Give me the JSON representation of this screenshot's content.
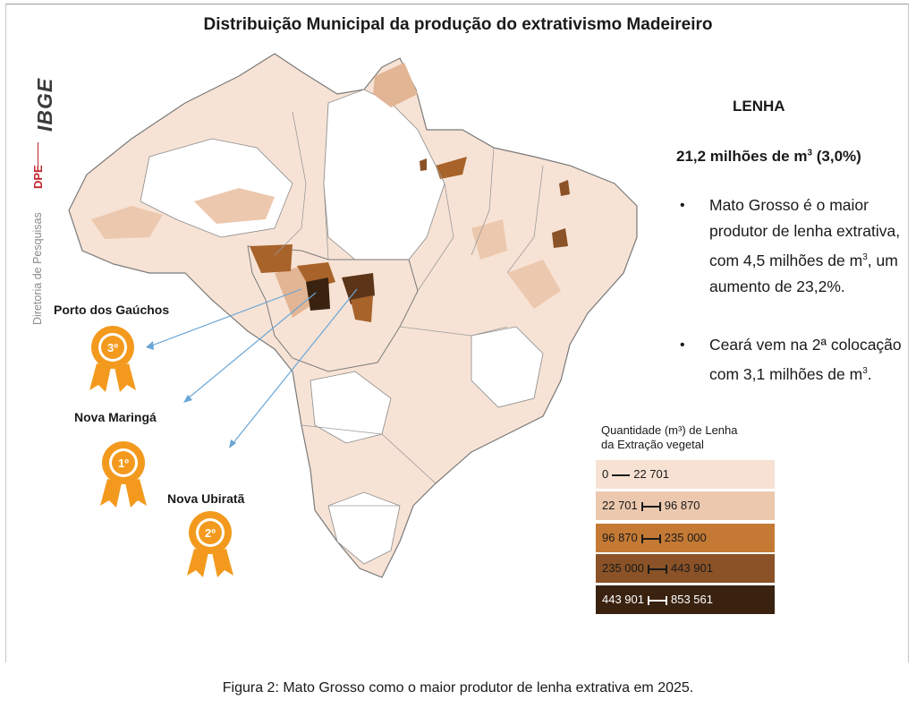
{
  "title": "Distribuição Municipal da produção do extrativismo Madeireiro",
  "sidebar": {
    "logo": "IBGE",
    "unit": "DPE",
    "department": "Diretoria de Pesquisas"
  },
  "info": {
    "heading": "LENHA",
    "total_value": "21,2 milhões de m",
    "total_sup": "3",
    "total_pct": " (3,0%)",
    "bullet1_a": "Mato Grosso é  o maior produtor de lenha extrativa, com 4,5 milhões de m",
    "bullet1_sup": "3",
    "bullet1_b": ", um aumento de 23,2%.",
    "bullet2_a": "Ceará vem na 2ª colocação com 3,1 milhões de m",
    "bullet2_sup": "3",
    "bullet2_b": ".",
    "bullet_icon": "•"
  },
  "legend": {
    "title_line1": "Quantidade  (m³)  de Lenha",
    "title_line2": "da Extração vegetal",
    "classes": [
      {
        "low": "0",
        "high": "22 701",
        "color": "#f6e1d3"
      },
      {
        "low": "22 701",
        "high": "96 870",
        "color": "#ecc8ae"
      },
      {
        "low": "96 870",
        "high": "235 000",
        "color": "#c47a35"
      },
      {
        "low": "235 000",
        "high": "443 901",
        "color": "#8a5226"
      },
      {
        "low": "443 901",
        "high": "853 561",
        "color": "#3a2210"
      }
    ]
  },
  "rankings": [
    {
      "place": "3º",
      "municipality": "Porto dos Gaúchos"
    },
    {
      "place": "1º",
      "municipality": "Nova Maringá"
    },
    {
      "place": "2º",
      "municipality": "Nova Ubiratã"
    }
  ],
  "medal_color": "#f39a1e",
  "pointer_color": "#6aa6d6",
  "caption": "Figura 2: Mato Grosso como o maior produtor de lenha extrativa em 2025."
}
